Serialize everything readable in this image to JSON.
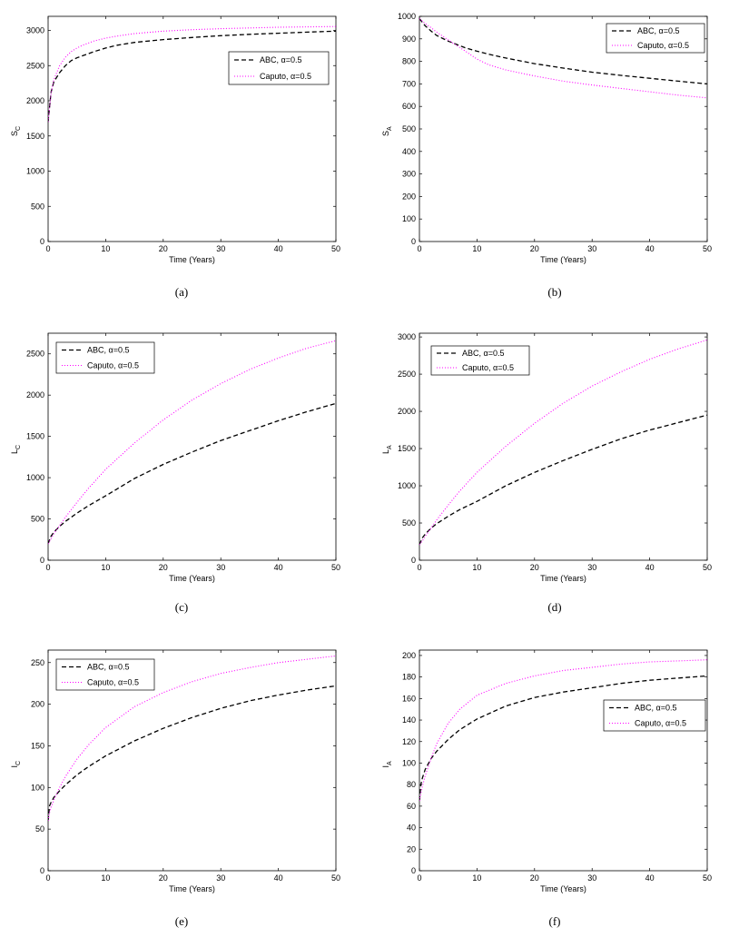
{
  "chart_data": [
    {
      "type": "line",
      "caption": "(a)",
      "xlabel": "Time (Years)",
      "ylabel": "S",
      "ylabel_sub": "C",
      "xlim": [
        0,
        50
      ],
      "ylim": [
        0,
        3200
      ],
      "xticks": [
        0,
        10,
        20,
        30,
        40,
        50
      ],
      "yticks": [
        0,
        500,
        1000,
        1500,
        2000,
        2500,
        3000
      ],
      "legend_position": "top-right",
      "x": [
        0,
        0.5,
        1,
        2,
        3,
        4,
        5,
        6,
        8,
        10,
        12,
        15,
        20,
        25,
        30,
        35,
        40,
        45,
        50
      ],
      "series": [
        {
          "name": "ABC, α=0.5",
          "style": "dashed",
          "color": "#000000",
          "values": [
            1700,
            2120,
            2270,
            2400,
            2500,
            2570,
            2610,
            2640,
            2700,
            2750,
            2790,
            2830,
            2870,
            2900,
            2925,
            2945,
            2960,
            2975,
            2990
          ]
        },
        {
          "name": "Caputo, α=0.5",
          "style": "dotted",
          "color": "#ff00ff",
          "values": [
            1700,
            2100,
            2300,
            2500,
            2620,
            2700,
            2750,
            2790,
            2850,
            2890,
            2920,
            2955,
            2990,
            3010,
            3025,
            3035,
            3045,
            3050,
            3055
          ]
        }
      ]
    },
    {
      "type": "line",
      "caption": "(b)",
      "xlabel": "Time (Years)",
      "ylabel": "S",
      "ylabel_sub": "A",
      "xlim": [
        0,
        50
      ],
      "ylim": [
        0,
        1000
      ],
      "xticks": [
        0,
        10,
        20,
        30,
        40,
        50
      ],
      "yticks": [
        0,
        100,
        200,
        300,
        400,
        500,
        600,
        700,
        800,
        900,
        1000
      ],
      "legend_position": "top-right",
      "x": [
        0,
        1,
        2,
        3,
        5,
        8,
        10,
        12,
        15,
        20,
        25,
        30,
        35,
        40,
        45,
        50
      ],
      "series": [
        {
          "name": "ABC, α=0.5",
          "style": "dashed",
          "color": "#000000",
          "values": [
            990,
            958,
            935,
            915,
            890,
            860,
            845,
            832,
            815,
            790,
            770,
            752,
            738,
            725,
            712,
            700
          ]
        },
        {
          "name": "Caputo, α=0.5",
          "style": "dotted",
          "color": "#ff00ff",
          "values": [
            990,
            968,
            950,
            930,
            895,
            845,
            810,
            785,
            762,
            735,
            712,
            695,
            680,
            665,
            650,
            638
          ]
        }
      ]
    },
    {
      "type": "line",
      "caption": "(c)",
      "xlabel": "Time (Years)",
      "ylabel": "L",
      "ylabel_sub": "C",
      "xlim": [
        0,
        50
      ],
      "ylim": [
        0,
        2750
      ],
      "xticks": [
        0,
        10,
        20,
        30,
        40,
        50
      ],
      "yticks": [
        0,
        500,
        1000,
        1500,
        2000,
        2500
      ],
      "legend_position": "top-left",
      "x": [
        0,
        0.5,
        1,
        2,
        3,
        5,
        7,
        10,
        15,
        20,
        25,
        30,
        35,
        40,
        45,
        50
      ],
      "series": [
        {
          "name": "ABC, α=0.5",
          "style": "dashed",
          "color": "#000000",
          "values": [
            200,
            290,
            340,
            410,
            470,
            570,
            660,
            780,
            990,
            1160,
            1310,
            1450,
            1570,
            1690,
            1800,
            1900
          ]
        },
        {
          "name": "Caputo, α=0.5",
          "style": "dotted",
          "color": "#ff00ff",
          "values": [
            200,
            260,
            320,
            420,
            520,
            700,
            870,
            1100,
            1420,
            1700,
            1940,
            2140,
            2310,
            2450,
            2570,
            2660
          ]
        }
      ]
    },
    {
      "type": "line",
      "caption": "(d)",
      "xlabel": "Time (Years)",
      "ylabel": "L",
      "ylabel_sub": "A",
      "xlim": [
        0,
        50
      ],
      "ylim": [
        0,
        3050
      ],
      "xticks": [
        0,
        10,
        20,
        30,
        40,
        50
      ],
      "yticks": [
        0,
        500,
        1000,
        1500,
        2000,
        2500,
        3000
      ],
      "legend_position": "top-left",
      "x": [
        0,
        0.5,
        1,
        2,
        3,
        5,
        7,
        10,
        15,
        20,
        25,
        30,
        35,
        40,
        45,
        50
      ],
      "series": [
        {
          "name": "ABC, α=0.5",
          "style": "dashed",
          "color": "#000000",
          "values": [
            210,
            300,
            350,
            430,
            490,
            590,
            680,
            790,
            1000,
            1180,
            1340,
            1490,
            1630,
            1750,
            1850,
            1950
          ]
        },
        {
          "name": "Caputo, α=0.5",
          "style": "dotted",
          "color": "#ff00ff",
          "values": [
            210,
            260,
            320,
            430,
            540,
            740,
            930,
            1180,
            1530,
            1840,
            2110,
            2340,
            2530,
            2700,
            2840,
            2960
          ]
        }
      ]
    },
    {
      "type": "line",
      "caption": "(e)",
      "xlabel": "Time (Years)",
      "ylabel": "I",
      "ylabel_sub": "C",
      "xlim": [
        0,
        50
      ],
      "ylim": [
        0,
        265
      ],
      "xticks": [
        0,
        10,
        20,
        30,
        40,
        50
      ],
      "yticks": [
        0,
        50,
        100,
        150,
        200,
        250
      ],
      "legend_position": "top-left",
      "x": [
        0,
        0.25,
        0.5,
        1,
        2,
        3,
        5,
        7,
        10,
        15,
        20,
        25,
        30,
        35,
        40,
        45,
        50
      ],
      "series": [
        {
          "name": "ABC, α=0.5",
          "style": "dashed",
          "color": "#000000",
          "values": [
            60,
            78,
            82,
            88,
            96,
            103,
            115,
            125,
            138,
            156,
            171,
            184,
            195,
            204,
            211,
            217,
            222
          ]
        },
        {
          "name": "Caputo, α=0.5",
          "style": "dotted",
          "color": "#ff00ff",
          "values": [
            60,
            70,
            76,
            85,
            100,
            113,
            134,
            151,
            172,
            197,
            214,
            227,
            237,
            244,
            250,
            254,
            258
          ]
        }
      ]
    },
    {
      "type": "line",
      "caption": "(f)",
      "xlabel": "Time (Years)",
      "ylabel": "I",
      "ylabel_sub": "A",
      "xlim": [
        0,
        50
      ],
      "ylim": [
        0,
        205
      ],
      "xticks": [
        0,
        10,
        20,
        30,
        40,
        50
      ],
      "yticks": [
        0,
        20,
        40,
        60,
        80,
        100,
        120,
        140,
        160,
        180,
        200
      ],
      "legend_position": "right",
      "x": [
        0,
        0.25,
        0.5,
        1,
        2,
        3,
        5,
        7,
        10,
        15,
        20,
        25,
        30,
        35,
        40,
        45,
        50
      ],
      "series": [
        {
          "name": "ABC, α=0.5",
          "style": "dashed",
          "color": "#000000",
          "values": [
            65,
            80,
            86,
            94,
            104,
            111,
            122,
            131,
            141,
            153,
            161,
            166,
            170,
            174,
            177,
            179,
            181
          ]
        },
        {
          "name": "Caputo, α=0.5",
          "style": "dotted",
          "color": "#ff00ff",
          "values": [
            65,
            72,
            78,
            88,
            104,
            118,
            137,
            150,
            163,
            174,
            181,
            186,
            189,
            192,
            194,
            195,
            196
          ]
        }
      ]
    }
  ]
}
